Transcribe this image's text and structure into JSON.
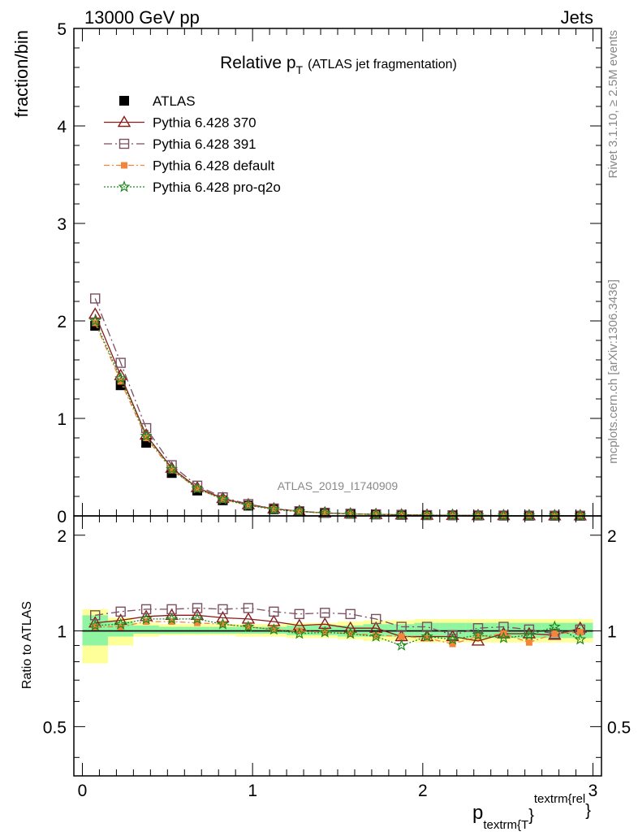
{
  "header": {
    "left": "13000 GeV pp",
    "right": "Jets"
  },
  "side_labels": {
    "rivet": "Rivet 3.1.10, ≥ 2.5M events",
    "mcplots": "mcplots.cern.ch [arXiv:1306.3436]"
  },
  "watermark": "ATLAS_2019_I1740909",
  "x_axis_label": {
    "main": "p",
    "sub": "textrm{T",
    "close": "}",
    "sup": "textrm{rel",
    "sup_close": "}"
  },
  "colors": {
    "atlas": "#000000",
    "p370": "#8b1a1a",
    "p391": "#7a4f60",
    "pdefault": "#f5843b",
    "pq2o": "#1e8a1e",
    "band_inner": "#90f5a0",
    "band_outer": "#ffff99"
  },
  "chart_data": [
    {
      "type": "line",
      "title": {
        "main": "Relative p",
        "sub": "T",
        "rest": "(ATLAS jet fragmentation)"
      },
      "ylabel": "fraction/bin",
      "xlim": [
        -0.05,
        3.05
      ],
      "ylim": [
        0,
        5
      ],
      "yticks": [
        "0",
        "1",
        "2",
        "3",
        "4",
        "5"
      ],
      "x": [
        0.075,
        0.225,
        0.375,
        0.525,
        0.675,
        0.825,
        0.975,
        1.125,
        1.275,
        1.425,
        1.575,
        1.725,
        1.875,
        2.025,
        2.175,
        2.325,
        2.475,
        2.625,
        2.775,
        2.925
      ],
      "series": [
        {
          "name": "ATLAS",
          "marker": "square-filled",
          "values": [
            1.95,
            1.34,
            0.75,
            0.44,
            0.26,
            0.16,
            0.105,
            0.068,
            0.045,
            0.03,
            0.021,
            0.015,
            0.011,
            0.008,
            0.006,
            0.0045,
            0.0035,
            0.0027,
            0.002,
            0.0015
          ]
        },
        {
          "name": "Pythia 6.428 370",
          "marker": "triangle-open",
          "values": [
            2.07,
            1.44,
            0.83,
            0.49,
            0.29,
            0.18,
            0.115,
            0.073,
            0.047,
            0.031,
            0.021,
            0.015,
            0.011,
            0.008,
            0.006,
            0.0042,
            0.0034,
            0.0026,
            0.002,
            0.0015
          ]
        },
        {
          "name": "Pythia 6.428 391",
          "marker": "square-open",
          "values": [
            2.23,
            1.57,
            0.9,
            0.52,
            0.31,
            0.19,
            0.121,
            0.076,
            0.048,
            0.032,
            0.022,
            0.016,
            0.011,
            0.008,
            0.006,
            0.0046,
            0.0036,
            0.0027,
            0.002,
            0.0015
          ]
        },
        {
          "name": "Pythia 6.428 default",
          "marker": "square-filled-small",
          "values": [
            1.98,
            1.38,
            0.8,
            0.47,
            0.28,
            0.17,
            0.108,
            0.069,
            0.045,
            0.03,
            0.021,
            0.015,
            0.01,
            0.0076,
            0.0054,
            0.0043,
            0.0034,
            0.0025,
            0.002,
            0.0015
          ]
        },
        {
          "name": "Pythia 6.428 pro-q2o",
          "marker": "star-open",
          "values": [
            2.0,
            1.41,
            0.82,
            0.48,
            0.28,
            0.17,
            0.108,
            0.067,
            0.044,
            0.03,
            0.021,
            0.014,
            0.01,
            0.0077,
            0.0056,
            0.0044,
            0.0033,
            0.0026,
            0.0021,
            0.0014
          ]
        }
      ]
    },
    {
      "type": "line",
      "ylabel": "Ratio to ATLAS",
      "yscale": "log",
      "xlim": [
        -0.05,
        3.05
      ],
      "ylim": [
        0.35,
        2.3
      ],
      "yticks": [
        {
          "v": 0.5,
          "label": "0.5"
        },
        {
          "v": 1,
          "label": "1"
        },
        {
          "v": 2,
          "label": "2"
        }
      ],
      "xticks": [
        {
          "v": 0,
          "label": "0"
        },
        {
          "v": 1,
          "label": "1"
        },
        {
          "v": 2,
          "label": "2"
        },
        {
          "v": 3,
          "label": "3"
        }
      ],
      "x": [
        0.075,
        0.225,
        0.375,
        0.525,
        0.675,
        0.825,
        0.975,
        1.125,
        1.275,
        1.425,
        1.575,
        1.725,
        1.875,
        2.025,
        2.175,
        2.325,
        2.475,
        2.625,
        2.775,
        2.925
      ],
      "band_inner": [
        [
          0.9,
          1.12
        ],
        [
          0.96,
          1.07
        ],
        [
          0.98,
          1.04
        ],
        [
          0.98,
          1.03
        ],
        [
          0.98,
          1.03
        ],
        [
          0.98,
          1.03
        ],
        [
          0.98,
          1.03
        ],
        [
          0.98,
          1.03
        ],
        [
          0.97,
          1.04
        ],
        [
          0.97,
          1.04
        ],
        [
          0.96,
          1.04
        ],
        [
          0.96,
          1.05
        ],
        [
          0.96,
          1.05
        ],
        [
          0.95,
          1.06
        ],
        [
          0.95,
          1.06
        ],
        [
          0.95,
          1.06
        ],
        [
          0.95,
          1.06
        ],
        [
          0.95,
          1.06
        ],
        [
          0.95,
          1.06
        ],
        [
          0.95,
          1.06
        ]
      ],
      "band_outer": [
        [
          0.79,
          1.17
        ],
        [
          0.9,
          1.1
        ],
        [
          0.96,
          1.06
        ],
        [
          0.97,
          1.05
        ],
        [
          0.97,
          1.05
        ],
        [
          0.97,
          1.05
        ],
        [
          0.96,
          1.05
        ],
        [
          0.96,
          1.05
        ],
        [
          0.95,
          1.06
        ],
        [
          0.95,
          1.06
        ],
        [
          0.94,
          1.07
        ],
        [
          0.93,
          1.08
        ],
        [
          0.93,
          1.08
        ],
        [
          0.92,
          1.09
        ],
        [
          0.92,
          1.09
        ],
        [
          0.92,
          1.09
        ],
        [
          0.92,
          1.09
        ],
        [
          0.92,
          1.09
        ],
        [
          0.92,
          1.09
        ],
        [
          0.92,
          1.09
        ]
      ],
      "series": [
        {
          "name": "Pythia 6.428 370",
          "marker": "triangle-open",
          "values": [
            1.06,
            1.08,
            1.11,
            1.12,
            1.12,
            1.1,
            1.09,
            1.07,
            1.04,
            1.05,
            1.02,
            1.02,
            0.96,
            0.96,
            0.96,
            0.93,
            0.98,
            0.98,
            0.97,
            1.02
          ]
        },
        {
          "name": "Pythia 6.428 391",
          "marker": "square-open",
          "values": [
            1.12,
            1.15,
            1.17,
            1.17,
            1.18,
            1.17,
            1.18,
            1.15,
            1.13,
            1.14,
            1.13,
            1.09,
            1.03,
            1.03,
            0.97,
            1.02,
            1.03,
            1.01,
            0.98,
            1.01
          ]
        },
        {
          "name": "Pythia 6.428 default",
          "marker": "square-filled-small",
          "values": [
            1.03,
            1.03,
            1.07,
            1.07,
            1.06,
            1.05,
            1.03,
            1.01,
            1.0,
            0.99,
            0.98,
            0.97,
            0.96,
            0.95,
            0.91,
            0.96,
            0.98,
            0.92,
            0.98,
            0.99
          ]
        },
        {
          "name": "Pythia 6.428 pro-q2o",
          "marker": "star-open",
          "values": [
            1.04,
            1.05,
            1.09,
            1.09,
            1.09,
            1.05,
            1.03,
            1.01,
            0.98,
            0.99,
            0.98,
            0.96,
            0.9,
            0.96,
            0.94,
            0.97,
            0.95,
            0.97,
            1.03,
            0.94
          ]
        }
      ]
    }
  ]
}
